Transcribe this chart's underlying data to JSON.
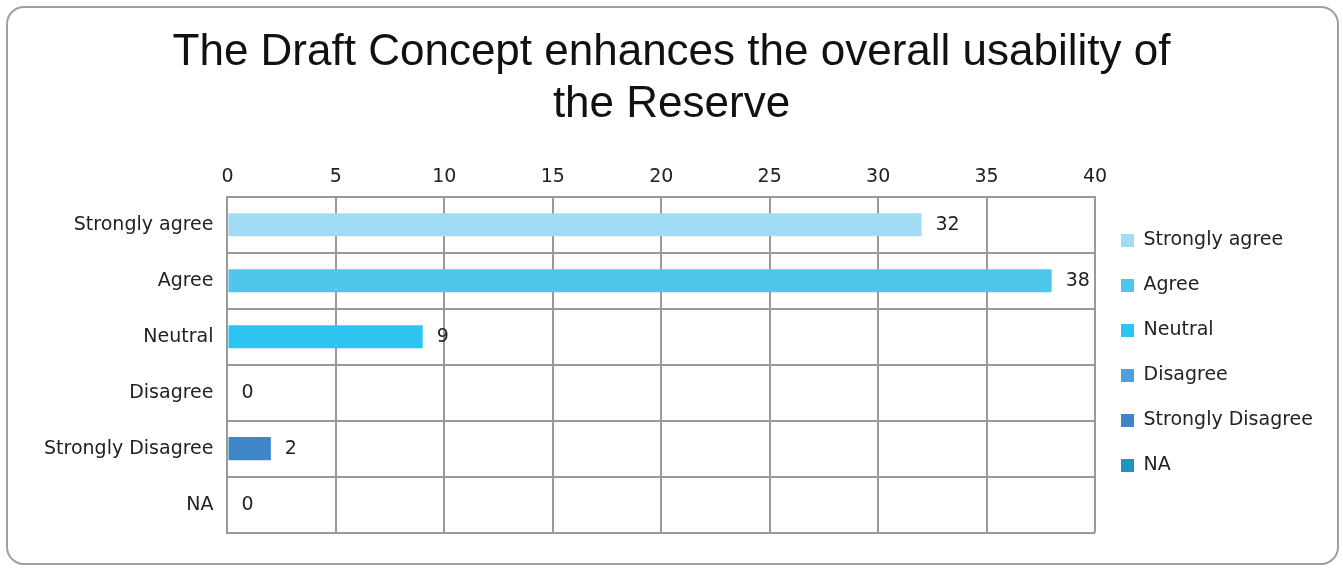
{
  "chart_data": {
    "type": "bar",
    "orientation": "horizontal",
    "stacked": true,
    "title": "The Draft Concept enhances the overall usability of the Reserve",
    "categories": [
      "Strongly agree",
      "Agree",
      "Neutral",
      "Disagree",
      "Strongly Disagree",
      "NA"
    ],
    "series": [
      {
        "name": "Strongly agree",
        "color": "#a0dcf4",
        "values": [
          32,
          null,
          null,
          null,
          null,
          null
        ]
      },
      {
        "name": "Agree",
        "color": "#4fc6ec",
        "values": [
          null,
          38,
          null,
          null,
          null,
          null
        ]
      },
      {
        "name": "Neutral",
        "color": "#2ec4f2",
        "values": [
          null,
          null,
          9,
          null,
          null,
          null
        ]
      },
      {
        "name": "Disagree",
        "color": "#4f9fd8",
        "values": [
          null,
          null,
          null,
          0,
          null,
          null
        ]
      },
      {
        "name": "Strongly Disagree",
        "color": "#3f86c8",
        "values": [
          null,
          null,
          null,
          null,
          2,
          null
        ]
      },
      {
        "name": "NA",
        "color": "#1e93c8",
        "values": [
          null,
          null,
          null,
          null,
          null,
          0
        ]
      }
    ],
    "xlim": [
      0,
      40
    ],
    "xticks": [
      0,
      5,
      10,
      15,
      20,
      25,
      30,
      35,
      40
    ],
    "grid": true,
    "legend": "right",
    "data_labels": true
  }
}
